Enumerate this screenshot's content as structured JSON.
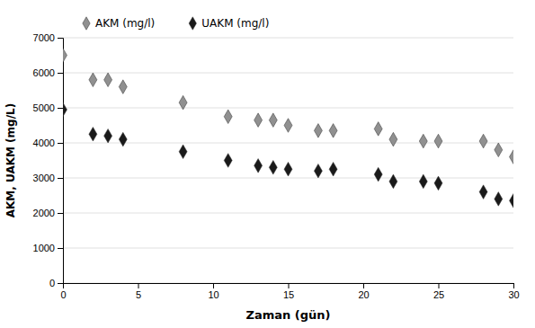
{
  "chart_data": {
    "type": "scatter",
    "xlabel": "Zaman (gün)",
    "ylabel": "AKM, UAKM (mg/L)",
    "x": [
      0,
      2,
      3,
      4,
      8,
      11,
      13,
      14,
      15,
      17,
      18,
      21,
      22,
      24,
      25,
      28,
      29,
      30
    ],
    "series": [
      {
        "name": "AKM (mg/l)",
        "color": "#909090",
        "marker": "diamond",
        "values": [
          6500,
          5800,
          5800,
          5600,
          5150,
          4750,
          4650,
          4650,
          4500,
          4350,
          4350,
          4400,
          4100,
          4050,
          4050,
          4050,
          3800,
          3600
        ]
      },
      {
        "name": "UAKM (mg/l)",
        "color": "#1a1a1a",
        "marker": "diamond",
        "values": [
          4950,
          4250,
          4200,
          4100,
          3750,
          3500,
          3350,
          3300,
          3250,
          3200,
          3250,
          3100,
          2900,
          2900,
          2850,
          2600,
          2400,
          2350
        ]
      }
    ],
    "xlim": [
      0,
      30
    ],
    "ylim": [
      0,
      7000
    ],
    "xticks": [
      0,
      5,
      10,
      15,
      20,
      25,
      30
    ],
    "yticks": [
      0,
      1000,
      2000,
      3000,
      4000,
      5000,
      6000,
      7000
    ],
    "grid": "y",
    "legend": "top"
  }
}
